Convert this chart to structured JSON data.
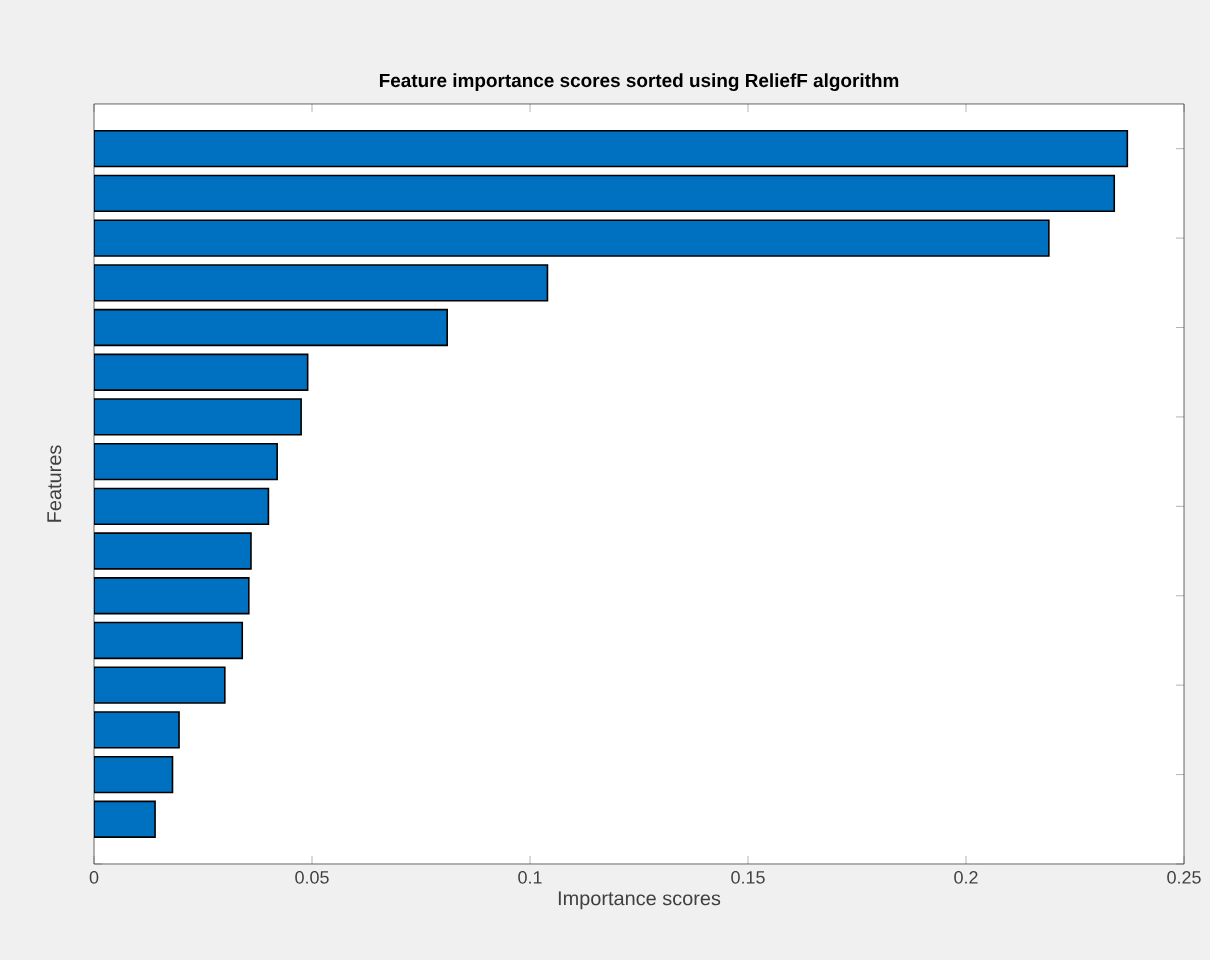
{
  "chart_data": {
    "type": "bar",
    "orientation": "horizontal",
    "title": "Feature importance scores sorted using ReliefF algorithm",
    "xlabel": "Importance scores",
    "ylabel": "Features",
    "categories": [
      null,
      null,
      null,
      null,
      null,
      null,
      null,
      null,
      null,
      null,
      null,
      null,
      null,
      null,
      null,
      null
    ],
    "values": [
      0.237,
      0.234,
      0.219,
      0.104,
      0.081,
      0.049,
      0.0475,
      0.042,
      0.04,
      0.036,
      0.0355,
      0.034,
      0.03,
      0.0195,
      0.018,
      0.014
    ],
    "color": "#0070c0",
    "xlim": [
      0,
      0.25
    ],
    "xticks": [
      0,
      0.05,
      0.1,
      0.15,
      0.2,
      0.25
    ],
    "grid": false
  }
}
